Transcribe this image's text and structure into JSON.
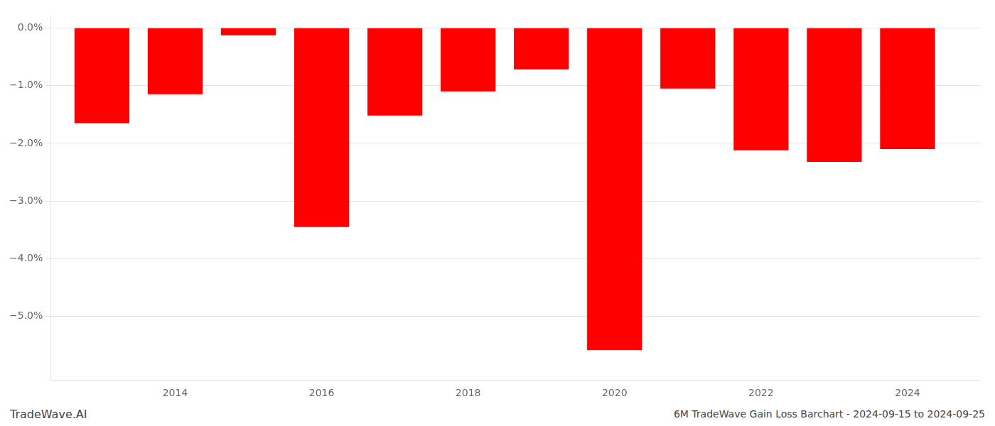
{
  "chart_data": {
    "type": "bar",
    "x": [
      2013,
      2014,
      2015,
      2016,
      2017,
      2018,
      2019,
      2020,
      2021,
      2022,
      2023,
      2024
    ],
    "values": [
      -1.65,
      -1.15,
      -0.13,
      -3.45,
      -1.52,
      -1.1,
      -0.72,
      -5.58,
      -1.05,
      -2.12,
      -2.32,
      -2.1
    ],
    "color": "#ff0000",
    "xlim": [
      2012.3,
      2025.0
    ],
    "xticks": [
      2014,
      2016,
      2018,
      2020,
      2022,
      2024
    ],
    "ylim": [
      -6.1,
      0.22
    ],
    "yticks": [
      {
        "value": 0.0,
        "label": "0.0%"
      },
      {
        "value": -1.0,
        "label": "−1.0%"
      },
      {
        "value": -2.0,
        "label": "−2.0%"
      },
      {
        "value": -3.0,
        "label": "−3.0%"
      },
      {
        "value": -4.0,
        "label": "−4.0%"
      },
      {
        "value": -5.0,
        "label": "−5.0%"
      }
    ],
    "grid": "y",
    "annotations": [
      "TradeWave.AI",
      "6M TradeWave Gain Loss Barchart - 2024-09-15 to 2024-09-25"
    ]
  }
}
